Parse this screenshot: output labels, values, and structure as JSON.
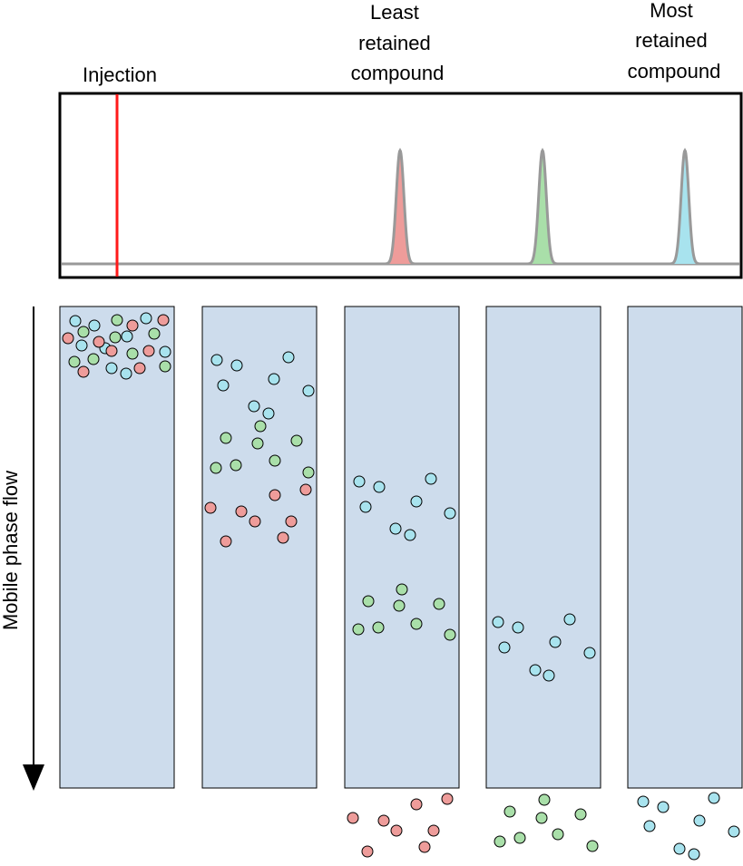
{
  "labels": {
    "injection": "Injection",
    "least_retained": [
      "Least",
      "retained",
      "compound"
    ],
    "most_retained": [
      "Most",
      "retained",
      "compound"
    ],
    "mobile_phase_flow": "Mobile phase flow"
  },
  "colors": {
    "column_fill": "#cddcec",
    "red_compound": "#ee9c9a",
    "green_compound": "#a9dfa9",
    "cyan_compound": "#a8e3ee",
    "peak_red": "#ee9c9a",
    "peak_green": "#a9dfa9",
    "peak_cyan": "#a8e3ee",
    "injection_line": "#ff1a1a",
    "baseline": "#999999"
  },
  "chromatogram": {
    "peaks": [
      {
        "compound": "red"
      },
      {
        "compound": "green"
      },
      {
        "compound": "cyan"
      }
    ]
  },
  "columns": [
    {
      "stage": "injection"
    },
    {
      "stage": "separating"
    },
    {
      "stage": "red-eluted"
    },
    {
      "stage": "green-eluted"
    },
    {
      "stage": "all-eluted"
    }
  ]
}
